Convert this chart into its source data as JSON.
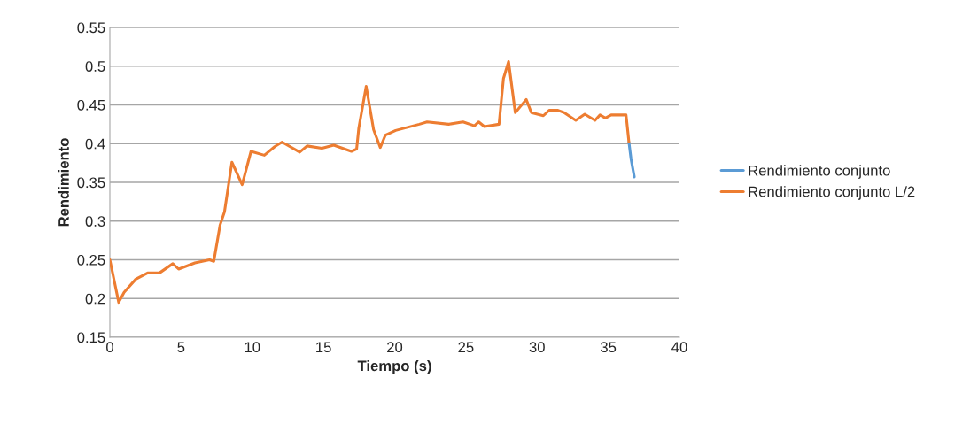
{
  "chart_data": {
    "type": "line",
    "xlabel": "Tiempo (s)",
    "ylabel": "Rendimiento",
    "xlim": [
      0,
      40
    ],
    "xticks": [
      0,
      5,
      10,
      15,
      20,
      25,
      30,
      35,
      40
    ],
    "ylim": [
      0.15,
      0.55
    ],
    "yticks": [
      0.15,
      0.2,
      0.25,
      0.3,
      0.35,
      0.4,
      0.45,
      0.5,
      0.55
    ],
    "grid": "y",
    "legend": "right",
    "marker": "none",
    "line_style": "solid",
    "series": [
      {
        "name": "Rendimiento conjunto",
        "color": "#5b9bd5",
        "x": [
          36.45,
          36.6,
          36.83
        ],
        "values": [
          0.402,
          0.38,
          0.357
        ]
      },
      {
        "name": "Rendimiento conjunto L/2",
        "color": "#ed7d31",
        "x": [
          0,
          0.17,
          0.62,
          1.0,
          1.82,
          2.65,
          3.48,
          4.42,
          4.83,
          5.97,
          7.0,
          7.3,
          7.74,
          8.05,
          8.57,
          9.29,
          9.91,
          10.85,
          11.57,
          12.09,
          13.33,
          13.85,
          14.89,
          15.72,
          16.96,
          17.33,
          17.48,
          18.0,
          18.52,
          18.99,
          19.35,
          20.07,
          21.73,
          22.28,
          23.8,
          24.8,
          25.6,
          25.9,
          26.3,
          27.33,
          27.64,
          28.0,
          28.47,
          29.24,
          29.6,
          30.44,
          30.85,
          31.47,
          31.9,
          32.72,
          33.35,
          34.07,
          34.42,
          34.8,
          35.2,
          35.94,
          36.25,
          36.45
        ],
        "values": [
          0.25,
          0.235,
          0.195,
          0.208,
          0.225,
          0.233,
          0.233,
          0.245,
          0.238,
          0.246,
          0.25,
          0.248,
          0.295,
          0.312,
          0.376,
          0.347,
          0.39,
          0.385,
          0.396,
          0.402,
          0.389,
          0.397,
          0.394,
          0.398,
          0.39,
          0.393,
          0.42,
          0.474,
          0.418,
          0.395,
          0.411,
          0.417,
          0.425,
          0.428,
          0.425,
          0.428,
          0.423,
          0.428,
          0.422,
          0.425,
          0.484,
          0.506,
          0.44,
          0.457,
          0.44,
          0.436,
          0.443,
          0.443,
          0.44,
          0.43,
          0.438,
          0.43,
          0.437,
          0.433,
          0.437,
          0.437,
          0.437,
          0.402
        ]
      }
    ]
  }
}
